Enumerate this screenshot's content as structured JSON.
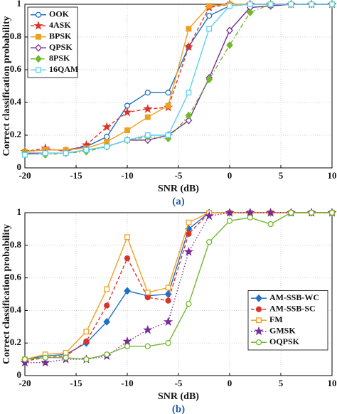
{
  "chart_data": [
    {
      "type": "line",
      "xlabel": "SNR (dB)",
      "ylabel": "Correct classification probability",
      "caption": "(a)",
      "x": [
        -20,
        -18,
        -16,
        -14,
        -12,
        -10,
        -8,
        -6,
        -4,
        -2,
        0,
        2,
        4,
        6,
        8,
        10
      ],
      "xlim": [
        -20,
        10
      ],
      "xticks": [
        -20,
        -15,
        -10,
        -5,
        0,
        5,
        10
      ],
      "ylim": [
        0,
        1
      ],
      "yticks": [
        0,
        0.2,
        0.4,
        0.6,
        0.8,
        1
      ],
      "grid": true,
      "legend": "upper left",
      "series": [
        {
          "name": "OOK",
          "color": "#1f6fc5",
          "marker": "circle",
          "filled": false,
          "linestyle": "solid",
          "values": [
            0.1,
            0.11,
            0.11,
            0.13,
            0.19,
            0.38,
            0.46,
            0.46,
            0.74,
            0.93,
            0.99,
            1,
            1,
            1,
            1,
            1
          ]
        },
        {
          "name": "4ASK",
          "color": "#d9342b",
          "marker": "star",
          "filled": true,
          "linestyle": "dashed",
          "values": [
            0.1,
            0.12,
            0.1,
            0.14,
            0.25,
            0.34,
            0.36,
            0.37,
            0.74,
            0.98,
            1,
            1,
            1,
            1,
            1,
            1
          ]
        },
        {
          "name": "BPSK",
          "color": "#f0a020",
          "marker": "square",
          "filled": true,
          "linestyle": "solid",
          "values": [
            0.1,
            0.11,
            0.11,
            0.12,
            0.16,
            0.23,
            0.31,
            0.38,
            0.85,
            0.99,
            1,
            1,
            1,
            1,
            1,
            1
          ]
        },
        {
          "name": "QPSK",
          "color": "#7a2a9a",
          "marker": "diamond",
          "filled": false,
          "linestyle": "solid",
          "values": [
            0.09,
            0.09,
            0.09,
            0.11,
            0.13,
            0.17,
            0.17,
            0.2,
            0.29,
            0.55,
            0.84,
            0.98,
            0.99,
            1,
            1,
            1
          ]
        },
        {
          "name": "8PSK",
          "color": "#72b82e",
          "marker": "diamond",
          "filled": true,
          "linestyle": "dashdot",
          "values": [
            0.09,
            0.08,
            0.09,
            0.1,
            0.13,
            0.17,
            0.19,
            0.18,
            0.32,
            0.54,
            0.75,
            0.95,
            1,
            1,
            1,
            1
          ]
        },
        {
          "name": "16QAM",
          "color": "#5cd0f0",
          "marker": "square",
          "filled": false,
          "linestyle": "solid",
          "values": [
            0.08,
            0.09,
            0.09,
            0.11,
            0.13,
            0.17,
            0.2,
            0.2,
            0.46,
            0.85,
            0.99,
            1,
            1,
            1,
            1,
            1
          ]
        }
      ]
    },
    {
      "type": "line",
      "xlabel": "SNR (dB)",
      "ylabel": "Correct classification probability",
      "caption": "(b)",
      "x": [
        -20,
        -18,
        -16,
        -14,
        -12,
        -10,
        -8,
        -6,
        -4,
        -2,
        0,
        2,
        4,
        6,
        8,
        10
      ],
      "xlim": [
        -20,
        10
      ],
      "xticks": [
        -20,
        -15,
        -10,
        -5,
        0,
        5,
        10
      ],
      "ylim": [
        0,
        1
      ],
      "yticks": [
        0,
        0.2,
        0.4,
        0.6,
        0.8,
        1
      ],
      "grid": true,
      "legend": "lower right",
      "series": [
        {
          "name": "AM-SSB-WC",
          "color": "#1f6fc5",
          "marker": "diamond",
          "filled": true,
          "linestyle": "solid",
          "values": [
            0.1,
            0.12,
            0.13,
            0.2,
            0.33,
            0.52,
            0.49,
            0.5,
            0.9,
            1,
            1,
            1,
            1,
            1,
            1,
            1
          ]
        },
        {
          "name": "AM-SSB-SC",
          "color": "#d9342b",
          "marker": "circle",
          "filled": true,
          "linestyle": "dashed",
          "values": [
            0.09,
            0.11,
            0.12,
            0.21,
            0.43,
            0.72,
            0.48,
            0.46,
            0.87,
            1,
            1,
            1,
            1,
            1,
            1,
            1
          ]
        },
        {
          "name": "FM",
          "color": "#f0a020",
          "marker": "square",
          "filled": false,
          "linestyle": "solid",
          "values": [
            0.1,
            0.13,
            0.14,
            0.27,
            0.53,
            0.85,
            0.51,
            0.54,
            0.94,
            1,
            1,
            1,
            1,
            1,
            1,
            1
          ]
        },
        {
          "name": "GMSK",
          "color": "#7a2a9a",
          "marker": "star",
          "filled": true,
          "linestyle": "dotted",
          "values": [
            0.08,
            0.08,
            0.1,
            0.1,
            0.12,
            0.21,
            0.28,
            0.33,
            0.76,
            0.98,
            1,
            1,
            1,
            1,
            1,
            1
          ]
        },
        {
          "name": "OQPSK",
          "color": "#72b82e",
          "marker": "circle",
          "filled": false,
          "linestyle": "solid",
          "values": [
            0.1,
            0.11,
            0.11,
            0.1,
            0.13,
            0.18,
            0.18,
            0.2,
            0.44,
            0.82,
            0.95,
            0.97,
            0.93,
            1,
            1,
            1
          ]
        }
      ]
    }
  ]
}
